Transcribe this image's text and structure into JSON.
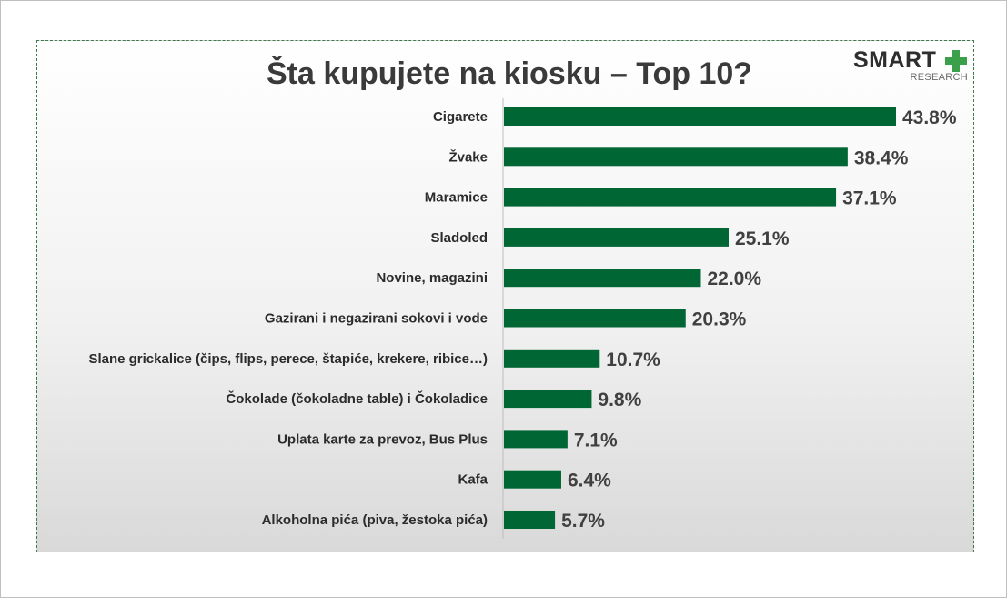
{
  "logo": {
    "text": "SMART",
    "plus_icon": "plus-icon",
    "subtitle": "RESEARCH",
    "plus_color": "#3aa04a"
  },
  "chart_data": {
    "type": "bar",
    "orientation": "horizontal",
    "title": "Šta kupujete na kiosku – Top 10?",
    "categories": [
      "Cigarete",
      "Žvake",
      "Maramice",
      "Sladoled",
      "Novine, magazini",
      "Gazirani i negazirani sokovi i vode",
      "Slane grickalice (čips, flips, perece, štapiće, krekere, ribice…)",
      "Čokolade (čokoladne table) i Čokoladice",
      "Uplata karte za prevoz, Bus Plus",
      "Kafa",
      "Alkoholna pića (piva, žestoka pića)"
    ],
    "values": [
      43.8,
      38.4,
      37.1,
      25.1,
      22.0,
      20.3,
      10.7,
      9.8,
      7.1,
      6.4,
      5.7
    ],
    "value_labels": [
      "43.8%",
      "38.4%",
      "37.1%",
      "25.1%",
      "22.0%",
      "20.3%",
      "10.7%",
      "9.8%",
      "7.1%",
      "6.4%",
      "5.7%"
    ],
    "bar_color": "#006633",
    "xlabel": "",
    "ylabel": "",
    "grid": false,
    "legend": "none"
  }
}
